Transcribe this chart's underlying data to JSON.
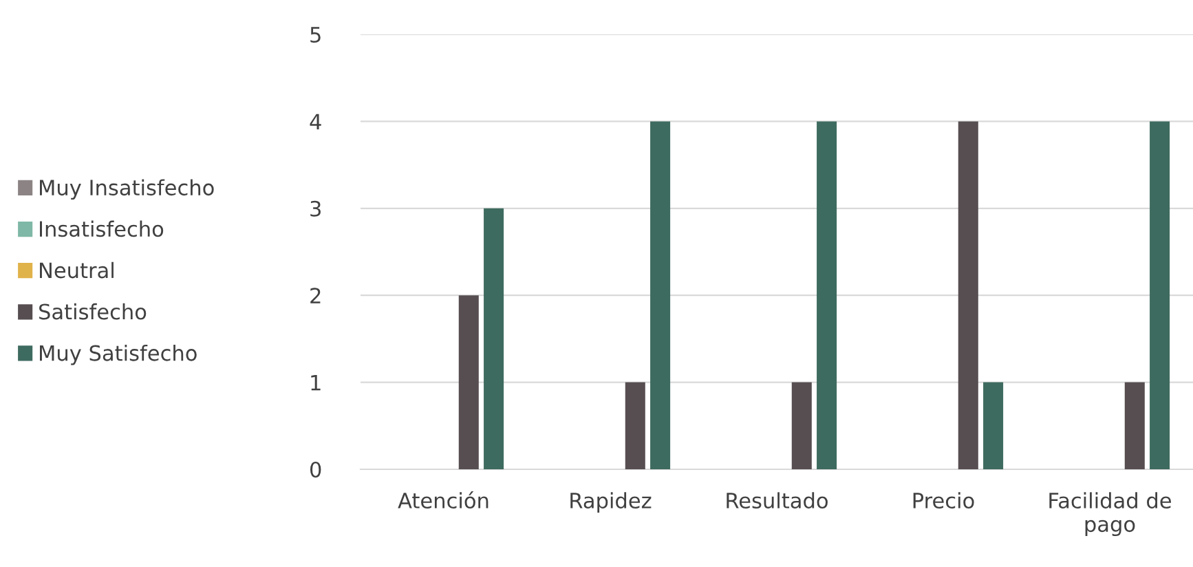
{
  "chart_data": {
    "type": "bar",
    "categories": [
      "Atención",
      "Rapidez",
      "Resultado",
      "Precio",
      "Facilidad de pago"
    ],
    "series": [
      {
        "name": "Muy Insatisfecho",
        "color": "#8c8484",
        "values": [
          0,
          0,
          0,
          0,
          0
        ]
      },
      {
        "name": "Insatisfecho",
        "color": "#7fb8a6",
        "values": [
          0,
          0,
          0,
          0,
          0
        ]
      },
      {
        "name": "Neutral",
        "color": "#e0b24a",
        "values": [
          0,
          0,
          0,
          0,
          0
        ]
      },
      {
        "name": "Satisfecho",
        "color": "#564e50",
        "values": [
          2,
          1,
          1,
          4,
          1
        ]
      },
      {
        "name": "Muy Satisfecho",
        "color": "#3e6b5f",
        "values": [
          3,
          4,
          4,
          1,
          4
        ]
      }
    ],
    "ylim": [
      0,
      5
    ],
    "yticks": [
      0,
      1,
      2,
      3,
      4,
      5
    ],
    "grid": "y",
    "legend": "left"
  }
}
